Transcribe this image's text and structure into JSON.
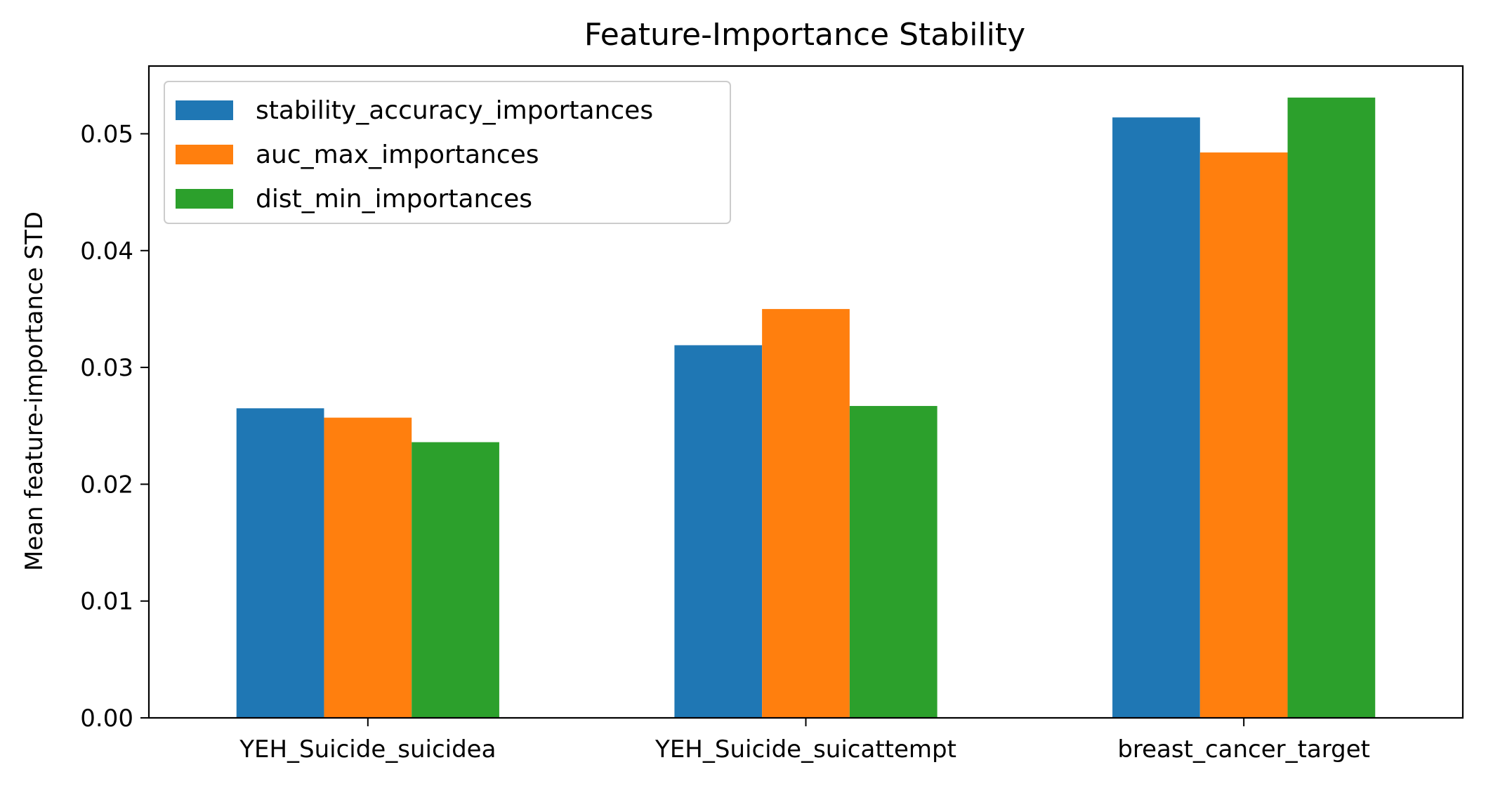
{
  "chart_data": {
    "type": "bar",
    "title": "Feature-Importance Stability",
    "xlabel": "",
    "ylabel": "Mean feature-importance STD",
    "categories": [
      "YEH_Suicide_suicidea",
      "YEH_Suicide_suicattempt",
      "breast_cancer_target"
    ],
    "series": [
      {
        "name": "stability_accuracy_importances",
        "color": "#1f77b4",
        "values": [
          0.0265,
          0.0319,
          0.0514
        ]
      },
      {
        "name": "auc_max_importances",
        "color": "#ff7f0e",
        "values": [
          0.0257,
          0.035,
          0.0484
        ]
      },
      {
        "name": "dist_min_importances",
        "color": "#2ca02c",
        "values": [
          0.0236,
          0.0267,
          0.0531
        ]
      }
    ],
    "ylim": [
      0,
      0.0558
    ],
    "yticks": [
      "0.00",
      "0.01",
      "0.02",
      "0.03",
      "0.04",
      "0.05"
    ],
    "grid": false,
    "legend_position": "top-left"
  }
}
